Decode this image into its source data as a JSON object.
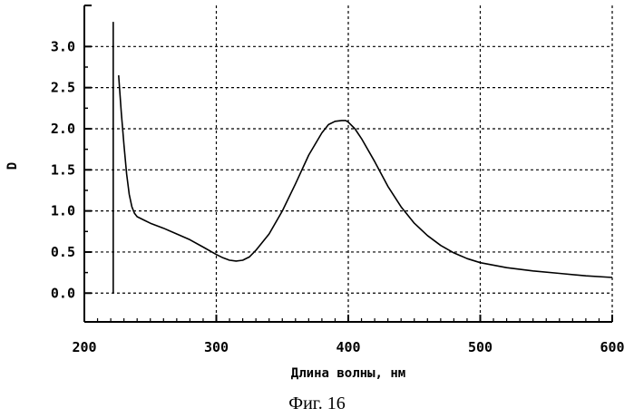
{
  "figure_caption": "Фиг. 16",
  "chart_data": {
    "type": "line",
    "title": "",
    "xlabel": "Длина волны, нм",
    "ylabel": "D",
    "xlim": [
      200,
      600
    ],
    "ylim": [
      -0.35,
      3.5
    ],
    "x_ticks": [
      "200",
      "300",
      "400",
      "500",
      "600"
    ],
    "y_ticks": [
      "0.0",
      "0.5",
      "1.0",
      "1.5",
      "2.0",
      "2.5",
      "3.0"
    ],
    "grid": true,
    "series": [
      {
        "x": [
          226,
          228,
          230,
          232,
          234,
          236,
          238,
          240,
          245,
          250,
          260,
          270,
          280,
          290,
          300,
          305,
          310,
          315,
          320,
          325,
          330,
          340,
          350,
          360,
          370,
          380,
          385,
          390,
          395,
          398,
          400,
          405,
          410,
          420,
          430,
          440,
          450,
          460,
          470,
          480,
          490,
          500,
          520,
          540,
          560,
          580,
          600
        ],
        "y": [
          2.65,
          2.2,
          1.8,
          1.45,
          1.2,
          1.05,
          0.97,
          0.93,
          0.89,
          0.85,
          0.79,
          0.72,
          0.65,
          0.56,
          0.47,
          0.43,
          0.4,
          0.39,
          0.4,
          0.44,
          0.52,
          0.72,
          1.0,
          1.33,
          1.68,
          1.95,
          2.05,
          2.09,
          2.1,
          2.1,
          2.08,
          2.0,
          1.88,
          1.6,
          1.3,
          1.05,
          0.85,
          0.7,
          0.58,
          0.49,
          0.42,
          0.37,
          0.31,
          0.27,
          0.24,
          0.21,
          0.19
        ]
      }
    ]
  }
}
